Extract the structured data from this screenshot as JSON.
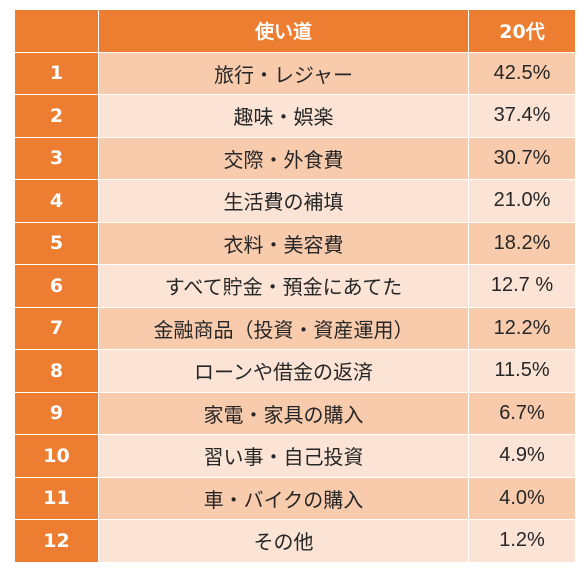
{
  "header": {
    "rank": "",
    "use": "使い道",
    "age": "20代"
  },
  "rows": [
    {
      "rank": "1",
      "use": "旅行・レジャー",
      "pct": "42.5%"
    },
    {
      "rank": "2",
      "use": "趣味・娯楽",
      "pct": "37.4%"
    },
    {
      "rank": "3",
      "use": "交際・外食費",
      "pct": "30.7%"
    },
    {
      "rank": "4",
      "use": "生活費の補填",
      "pct": "21.0%"
    },
    {
      "rank": "5",
      "use": "衣料・美容費",
      "pct": "18.2%"
    },
    {
      "rank": "6",
      "use": "すべて貯金・預金にあてた",
      "pct": "12.7 %"
    },
    {
      "rank": "7",
      "use": "金融商品（投資・資産運用）",
      "pct": "12.2%"
    },
    {
      "rank": "8",
      "use": "ローンや借金の返済",
      "pct": "11.5%"
    },
    {
      "rank": "9",
      "use": "家電・家具の購入",
      "pct": "6.7%"
    },
    {
      "rank": "10",
      "use": "習い事・自己投資",
      "pct": "4.9%"
    },
    {
      "rank": "11",
      "use": "車・バイクの購入",
      "pct": "4.0%"
    },
    {
      "rank": "12",
      "use": "その他",
      "pct": "1.2%"
    }
  ],
  "colors": {
    "header_accent": "#ED7D31",
    "row_odd": "#F8CBAD",
    "row_even": "#FBE4D5"
  }
}
